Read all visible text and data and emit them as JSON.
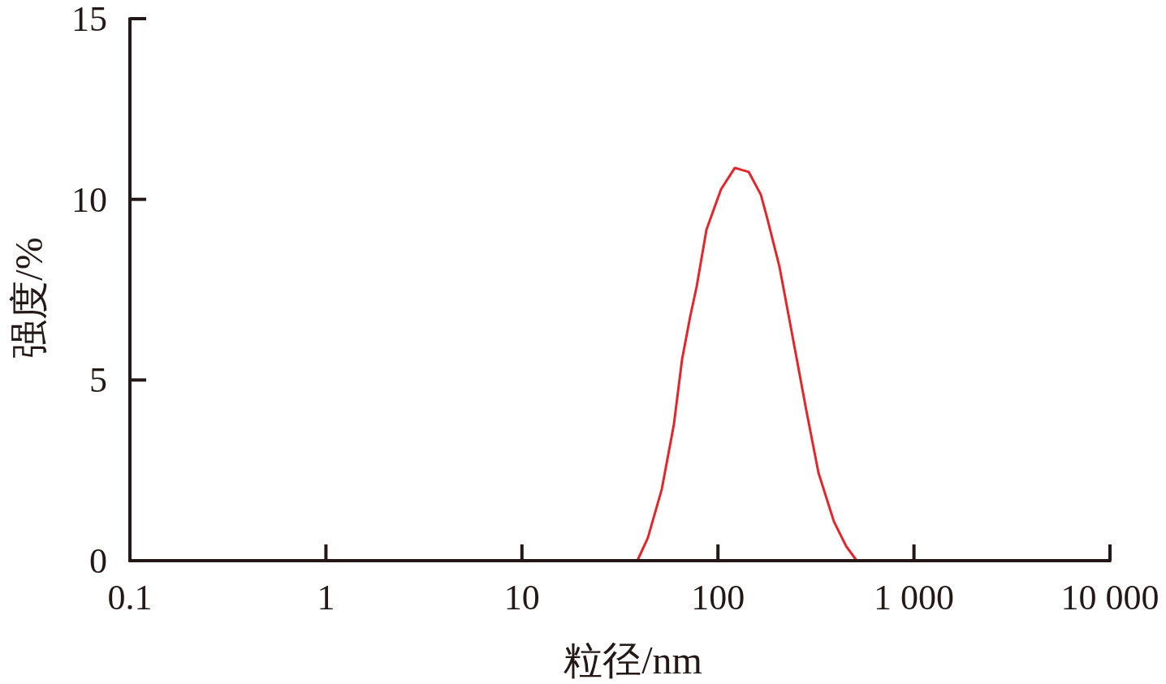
{
  "chart_data": {
    "type": "line",
    "xlabel": "粒径/nm",
    "ylabel": "强度/%",
    "log": "x",
    "xlim": [
      0.1,
      10000
    ],
    "xticks": [
      0.1,
      1,
      10,
      100,
      {
        "value": 1000,
        "label": "1 000"
      },
      {
        "value": 10000,
        "label": "10 000"
      }
    ],
    "ylim": [
      0,
      15
    ],
    "yticks": [
      0,
      5,
      10,
      15
    ],
    "marker": "none",
    "line_style": "solid",
    "x": [
      38.8,
      43.9,
      51.7,
      59.6,
      65.6,
      72.2,
      77.9,
      87.4,
      103.7,
      121.9,
      143.4,
      165.5,
      178.6,
      206.1,
      226.6,
      249.4,
      282.4,
      325.8,
      390.7,
      450.8,
      510.5
    ],
    "series": [
      {
        "color": "#e3262b",
        "values": [
          0,
          0.63,
          1.98,
          3.77,
          5.57,
          6.76,
          7.59,
          9.16,
          10.28,
          10.87,
          10.76,
          10.13,
          9.47,
          8.13,
          6.94,
          5.73,
          4.16,
          2.43,
          1.08,
          0.4,
          0
        ]
      }
    ]
  }
}
